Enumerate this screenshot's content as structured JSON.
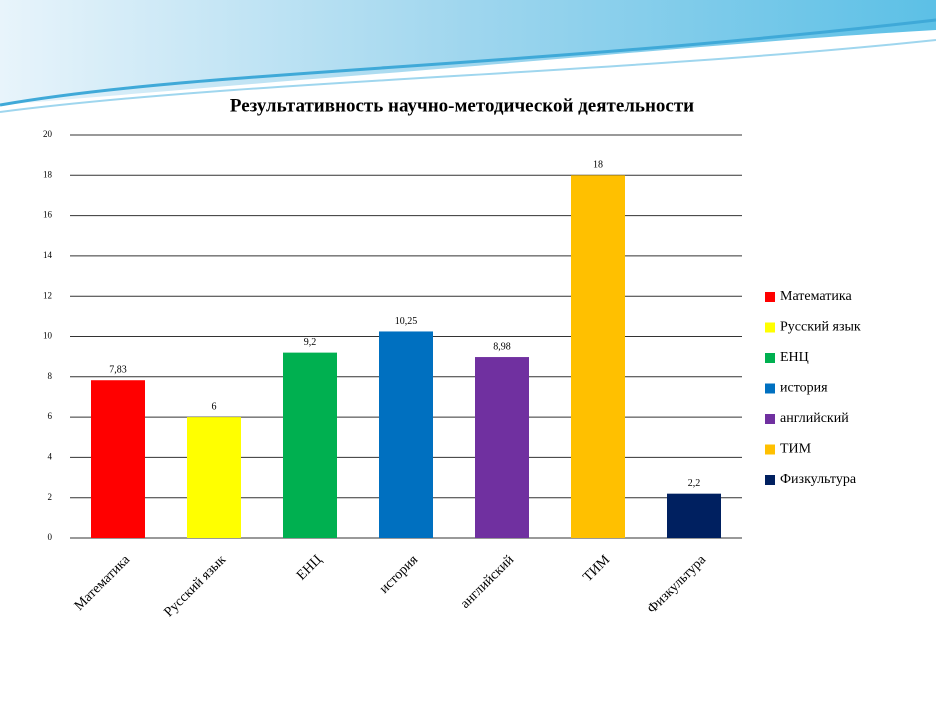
{
  "chart_data": {
    "type": "bar",
    "title": "Результативность научно-методической деятельности",
    "categories": [
      "Математика",
      "Русский язык",
      "ЕНЦ",
      "история",
      "английский",
      "ТИМ",
      "Физкультура"
    ],
    "values": [
      7.83,
      6,
      9.2,
      10.25,
      8.98,
      18,
      2.2
    ],
    "value_labels": [
      "7,83",
      "6",
      "9,2",
      "10,25",
      "8,98",
      "18",
      "2,2"
    ],
    "colors": [
      "#ff0000",
      "#ffff00",
      "#00b050",
      "#0070c0",
      "#7030a0",
      "#ffc000",
      "#002060"
    ],
    "ylim": [
      0,
      20
    ],
    "yticks": [
      0,
      2,
      4,
      6,
      8,
      10,
      12,
      14,
      16,
      18,
      20
    ],
    "grid": true,
    "legend": "right"
  }
}
